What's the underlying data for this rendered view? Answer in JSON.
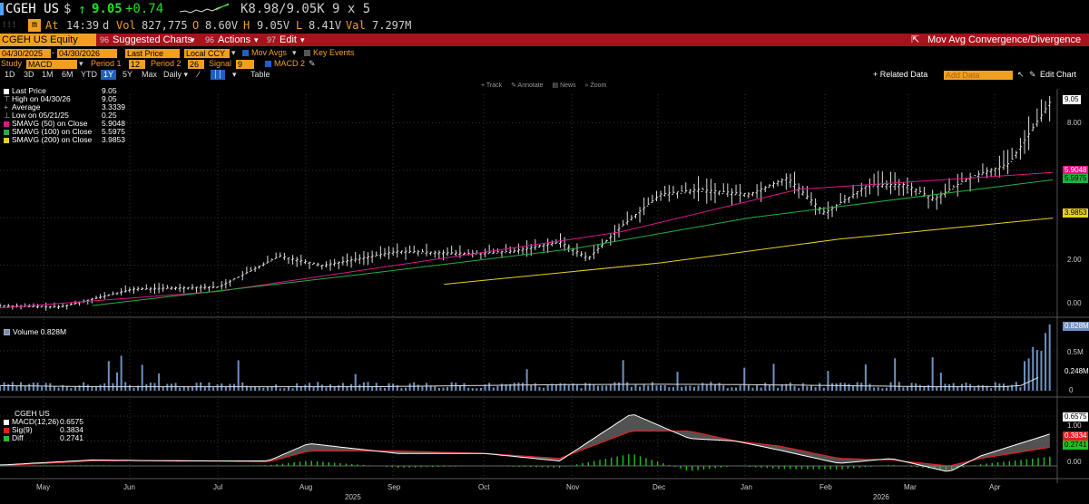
{
  "quote": {
    "ticker": "CGEH US",
    "currency_symbol": "$",
    "arrow": "↑",
    "last": "9.05",
    "change": "+0.74",
    "bid_ask": "K8.98/9.05K",
    "size": "9 x 5",
    "at_label": "At",
    "time": "14:39",
    "d_label": "d",
    "vol_label": "Vol",
    "volume": "827,775",
    "open_label": "O",
    "open": "8.60V",
    "high_label": "H",
    "high": "9.05V",
    "low_label": "L",
    "low": "8.41V",
    "val_label": "Val",
    "value": "7.297M"
  },
  "toolbar": {
    "security": "CGEH US Equity",
    "suggested_charts": "Suggested Charts",
    "suggested_num": "96",
    "actions": "Actions",
    "actions_num": "96",
    "edit": "Edit",
    "edit_num": "97",
    "chart_title": "Mov Avg Convergence/Divergence"
  },
  "controls": {
    "date_from": "04/30/2025",
    "date_to": "04/30/2026",
    "price_field": "Last Price",
    "currency": "Local CCY",
    "mov_avgs": "Mov Avgs",
    "key_events": "Key Events",
    "study_label": "Study",
    "study": "MACD",
    "period1_label": "Period 1",
    "period1": "12",
    "period2_label": "Period 2",
    "period2": "26",
    "signal_label": "Signal",
    "signal": "9",
    "macd2": "MACD 2"
  },
  "periods": [
    "1D",
    "3D",
    "1M",
    "6M",
    "YTD",
    "1Y",
    "5Y",
    "Max",
    "Daily ▾"
  ],
  "period_selected": "1Y",
  "table_label": "Table",
  "right_tools": {
    "related_data": "+ Related Data",
    "add_data": "Add Data",
    "edit_chart": "Edit Chart"
  },
  "mini_tools": [
    "Track",
    "Annotate",
    "News",
    "Zoom"
  ],
  "price_legend": [
    {
      "label": "Last Price",
      "value": "9.05",
      "color": "#ffffff"
    },
    {
      "label": "High on 04/30/26",
      "value": "9.05",
      "color": ""
    },
    {
      "label": "Average",
      "value": "3.3339",
      "color": ""
    },
    {
      "label": "Low on 05/21/25",
      "value": "0.25",
      "color": ""
    },
    {
      "label": "SMAVG (50)  on Close",
      "value": "5.9048",
      "color": "#e0148c"
    },
    {
      "label": "SMAVG (100)  on Close",
      "value": "5.5975",
      "color": "#20b040"
    },
    {
      "label": "SMAVG (200)  on Close",
      "value": "3.9853",
      "color": "#e8d020"
    }
  ],
  "price_axis": [
    "8.00",
    "6.00",
    "4.00",
    "2.00",
    "0.00"
  ],
  "price_tags": [
    {
      "text": "9.05",
      "bg": "#ffffff",
      "fg": "#000000"
    },
    {
      "text": "5.9048",
      "bg": "#e0148c",
      "fg": "#ffffff"
    },
    {
      "text": "5.5975",
      "bg": "#20b040",
      "fg": "#000000"
    },
    {
      "text": "3.9853",
      "bg": "#e8d020",
      "fg": "#000000"
    }
  ],
  "volume_legend": {
    "label": "Volume",
    "value": "0.828M"
  },
  "volume_axis": [
    "0.5M",
    "0"
  ],
  "volume_tags": [
    {
      "text": "0.828M",
      "bg": "#7090c0",
      "fg": "#ffffff"
    },
    {
      "text": "0.248M",
      "bg": "#000000",
      "fg": "#ffffff"
    }
  ],
  "macd_legend": {
    "title": "CGEH US",
    "rows": [
      {
        "label": "MACD(12,26)",
        "value": "0.6575",
        "color": "#ffffff"
      },
      {
        "label": "Sig(9)",
        "value": "0.3834",
        "color": "#e02020"
      },
      {
        "label": "Diff",
        "value": "0.2741",
        "color": "#20c020"
      }
    ]
  },
  "macd_axis": [
    "1.00",
    "0.50",
    "0.00"
  ],
  "macd_tags": [
    {
      "text": "0.6575",
      "bg": "#ffffff",
      "fg": "#000000"
    },
    {
      "text": "0.3834",
      "bg": "#e02020",
      "fg": "#ffffff"
    },
    {
      "text": "0.2741",
      "bg": "#20c020",
      "fg": "#000000"
    }
  ],
  "months": [
    "May",
    "Jun",
    "Jul",
    "Aug",
    "Sep",
    "Oct",
    "Nov",
    "Dec",
    "Jan",
    "Feb",
    "Mar",
    "Apr"
  ],
  "years": [
    "2025",
    "2026"
  ],
  "colors": {
    "accent": "#f0a020",
    "red_bar": "#a8121c",
    "sma50": "#e0148c",
    "sma100": "#20b040",
    "sma200": "#e8d020",
    "volume": "#7090c0"
  },
  "chart_data": {
    "type": "line",
    "x_range": [
      "2025-04-30",
      "2026-04-30"
    ],
    "price_ylim": [
      0,
      9.2
    ],
    "price_series": {
      "name": "Last Price",
      "x": [
        "2025-04-30",
        "2025-05-21",
        "2025-06-15",
        "2025-07-15",
        "2025-08-05",
        "2025-08-20",
        "2025-09-15",
        "2025-10-10",
        "2025-10-25",
        "2025-11-10",
        "2025-11-20",
        "2025-12-01",
        "2025-12-15",
        "2025-12-28",
        "2026-01-15",
        "2026-01-28",
        "2026-02-10",
        "2026-02-25",
        "2026-03-10",
        "2026-03-20",
        "2026-04-01",
        "2026-04-15",
        "2026-04-30"
      ],
      "values": [
        0.3,
        0.25,
        1.0,
        1.1,
        2.4,
        2.0,
        2.6,
        2.5,
        2.6,
        3.0,
        2.3,
        3.6,
        5.0,
        5.2,
        5.0,
        5.7,
        4.2,
        5.4,
        5.4,
        4.8,
        5.7,
        6.3,
        9.05
      ]
    },
    "sma": [
      {
        "name": "SMAVG (50)  on Close",
        "x": [
          "2025-04-30",
          "2025-07-15",
          "2025-10-01",
          "2025-12-01",
          "2026-02-01",
          "2026-04-30"
        ],
        "values": [
          0.2,
          0.9,
          2.3,
          3.4,
          5.2,
          5.9048
        ]
      },
      {
        "name": "SMAVG (100)  on Close",
        "x": [
          "2025-06-01",
          "2025-09-01",
          "2025-11-15",
          "2026-01-15",
          "2026-04-30"
        ],
        "values": [
          0.3,
          1.6,
          2.7,
          4.0,
          5.5975
        ]
      },
      {
        "name": "SMAVG (200)  on Close",
        "x": [
          "2025-10-01",
          "2025-12-15",
          "2026-02-15",
          "2026-04-30"
        ],
        "values": [
          1.2,
          2.1,
          3.1,
          3.9853
        ]
      }
    ],
    "volume_series": {
      "name": "Volume",
      "ylim": [
        0,
        0.85
      ],
      "last": 0.828,
      "ma": 0.248
    },
    "macd": {
      "ylim": [
        -0.2,
        1.2
      ],
      "x": [
        "2025-05-01",
        "2025-06-01",
        "2025-07-01",
        "2025-08-01",
        "2025-08-15",
        "2025-09-15",
        "2025-10-15",
        "2025-11-10",
        "2025-12-05",
        "2025-12-25",
        "2026-01-10",
        "2026-01-25",
        "2026-02-15",
        "2026-03-05",
        "2026-03-25",
        "2026-04-05",
        "2026-04-30"
      ],
      "macd": [
        0.02,
        0.12,
        0.1,
        0.1,
        0.45,
        0.25,
        0.25,
        0.1,
        1.05,
        0.55,
        0.5,
        0.32,
        0.05,
        0.15,
        -0.12,
        0.2,
        0.6575
      ],
      "signal": [
        0.01,
        0.1,
        0.11,
        0.08,
        0.3,
        0.3,
        0.25,
        0.15,
        0.7,
        0.7,
        0.5,
        0.4,
        0.15,
        0.12,
        0.0,
        0.15,
        0.3834
      ]
    }
  }
}
